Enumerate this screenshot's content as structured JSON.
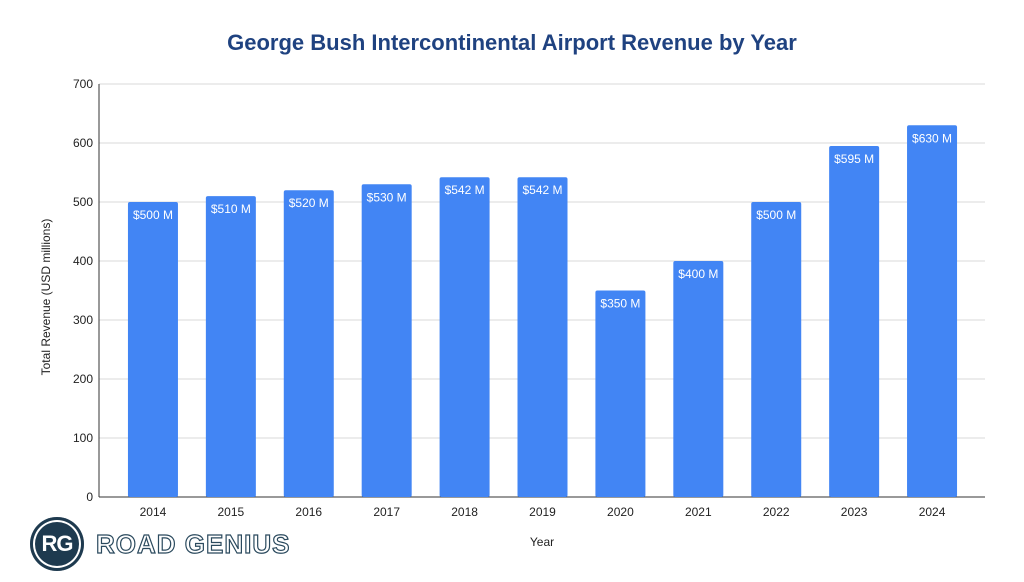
{
  "chart_data": {
    "type": "bar",
    "title": "George Bush Intercontinental Airport Revenue by Year",
    "xlabel": "Year",
    "ylabel": "Total Revenue (USD millions)",
    "categories": [
      "2014",
      "2015",
      "2016",
      "2017",
      "2018",
      "2019",
      "2020",
      "2021",
      "2022",
      "2023",
      "2024"
    ],
    "values": [
      500,
      510,
      520,
      530,
      542,
      542,
      350,
      400,
      500,
      595,
      630
    ],
    "data_labels": [
      "$500 M",
      "$510 M",
      "$520 M",
      "$530 M",
      "$542 M",
      "$542 M",
      "$350 M",
      "$400 M",
      "$500 M",
      "$595 M",
      "$630 M"
    ],
    "ylim": [
      0,
      700
    ],
    "yticks": [
      0,
      100,
      200,
      300,
      400,
      500,
      600,
      700
    ],
    "grid": true,
    "bar_color": "#4285f4"
  },
  "logo": {
    "badge": "RG",
    "text": "ROAD GENIUS"
  }
}
